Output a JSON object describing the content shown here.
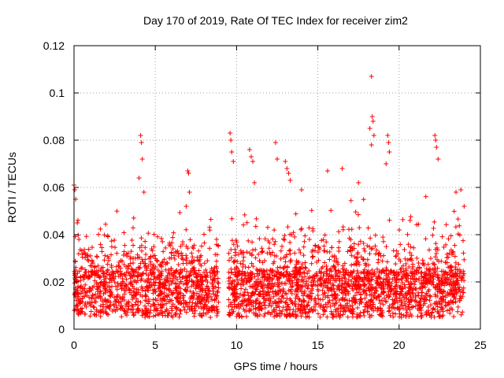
{
  "chart_data": {
    "type": "scatter",
    "title": "Day 170 of 2019, Rate Of TEC Index for receiver zim2",
    "xlabel": "GPS time / hours",
    "ylabel": "ROTI / TECUs",
    "xlim": [
      0,
      25
    ],
    "ylim": [
      0,
      0.12
    ],
    "x_ticks": [
      0,
      5,
      10,
      15,
      20,
      25
    ],
    "x_tick_labels": [
      "0",
      "5",
      "10",
      "15",
      "20",
      "25"
    ],
    "y_ticks": [
      0,
      0.02,
      0.04,
      0.06,
      0.08,
      0.1,
      0.12
    ],
    "y_tick_labels": [
      "0",
      "0.02",
      "0.04",
      "0.06",
      "0.08",
      "0.1",
      "0.12"
    ],
    "grid": true,
    "marker": "+",
    "marker_color": "#ff0000",
    "data_gap_hours": [
      8.9,
      9.5
    ],
    "x_range_of_data": [
      0,
      24
    ],
    "series": [
      {
        "name": "ROTI",
        "points": [
          [
            0.0,
            0.061
          ],
          [
            0.05,
            0.059
          ],
          [
            0.1,
            0.055
          ],
          [
            0.2,
            0.045
          ],
          [
            0.3,
            0.038
          ],
          [
            4.1,
            0.082
          ],
          [
            4.15,
            0.079
          ],
          [
            4.2,
            0.072
          ],
          [
            4.0,
            0.064
          ],
          [
            4.3,
            0.058
          ],
          [
            7.0,
            0.067
          ],
          [
            7.05,
            0.066
          ],
          [
            7.1,
            0.058
          ],
          [
            6.9,
            0.052
          ],
          [
            9.6,
            0.083
          ],
          [
            9.65,
            0.08
          ],
          [
            9.7,
            0.075
          ],
          [
            9.8,
            0.071
          ],
          [
            10.8,
            0.076
          ],
          [
            10.9,
            0.073
          ],
          [
            11.0,
            0.071
          ],
          [
            11.1,
            0.062
          ],
          [
            12.4,
            0.079
          ],
          [
            12.5,
            0.072
          ],
          [
            13.0,
            0.071
          ],
          [
            13.1,
            0.068
          ],
          [
            13.2,
            0.066
          ],
          [
            13.3,
            0.063
          ],
          [
            14.0,
            0.059
          ],
          [
            15.6,
            0.067
          ],
          [
            16.5,
            0.068
          ],
          [
            17.5,
            0.062
          ],
          [
            18.3,
            0.107
          ],
          [
            18.35,
            0.09
          ],
          [
            18.4,
            0.088
          ],
          [
            18.2,
            0.085
          ],
          [
            18.45,
            0.082
          ],
          [
            18.3,
            0.078
          ],
          [
            19.3,
            0.082
          ],
          [
            19.35,
            0.079
          ],
          [
            19.4,
            0.075
          ],
          [
            19.2,
            0.07
          ],
          [
            22.2,
            0.082
          ],
          [
            22.25,
            0.08
          ],
          [
            22.3,
            0.077
          ],
          [
            22.4,
            0.072
          ],
          [
            23.5,
            0.058
          ],
          [
            23.8,
            0.059
          ],
          [
            24.0,
            0.052
          ]
        ]
      }
    ]
  }
}
